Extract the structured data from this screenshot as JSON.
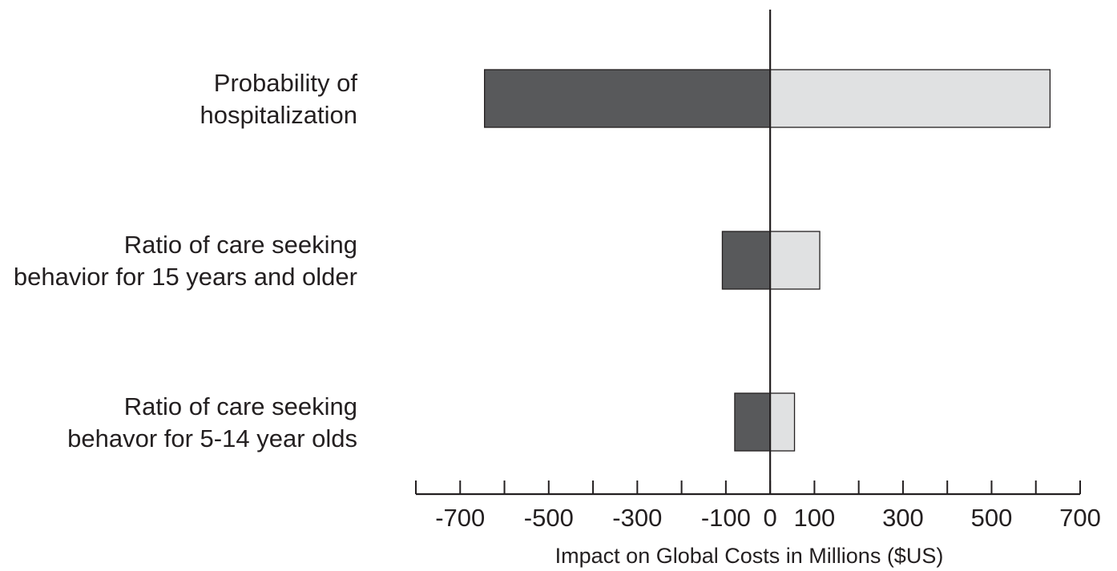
{
  "chart_data": {
    "type": "bar",
    "orientation": "horizontal",
    "subtype": "tornado",
    "categories": [
      [
        "Probability of",
        "hospitalization"
      ],
      [
        "Ratio of care seeking",
        "behavior for 15 years and older"
      ],
      [
        "Ratio of care seeking",
        "behavor for 5-14 year olds"
      ]
    ],
    "series": [
      {
        "values": [
          -645,
          -108,
          -80
        ],
        "color": "#58595b"
      },
      {
        "values": [
          632,
          112,
          55
        ],
        "color": "#e0e1e2"
      }
    ],
    "xlabel": "Impact on Global Costs in Millions ($US)",
    "ylabel": "",
    "xlim": [
      -800,
      700
    ],
    "major_ticks": [
      -700,
      -600,
      -500,
      -400,
      -300,
      -200,
      -100,
      0,
      100,
      200,
      300,
      400,
      500,
      600,
      700
    ],
    "tick_labels": [
      "-700",
      "-500",
      "-300",
      "-100",
      "0",
      "100",
      "300",
      "500",
      "700"
    ],
    "tick_label_values": [
      -700,
      -500,
      -300,
      -100,
      0,
      100,
      300,
      500,
      700
    ],
    "grid": false,
    "legend": "none",
    "zero_line": true,
    "outline_color": "#231f20"
  }
}
